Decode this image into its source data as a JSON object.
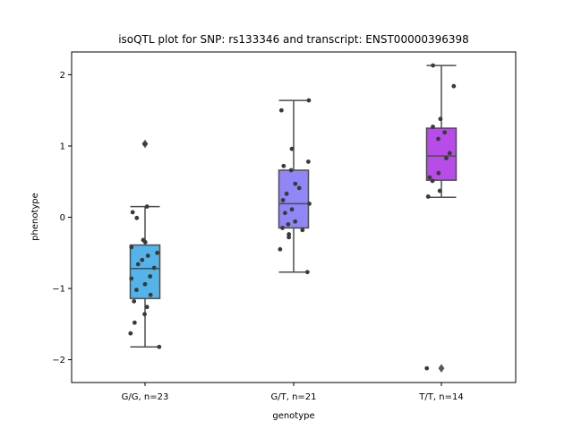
{
  "chart_data": {
    "type": "box",
    "title": "isoQTL plot for SNP: rs133346 and transcript: ENST00000396398",
    "xlabel": "genotype",
    "ylabel": "phenotype",
    "ylim": [
      -2.32,
      2.32
    ],
    "yticks": [
      -2,
      -1,
      0,
      1,
      2
    ],
    "yticklabels": [
      "−2",
      "−1",
      "0",
      "1",
      "2"
    ],
    "categories": [
      "G/G, n=23",
      "G/T, n=21",
      "T/T, n=14"
    ],
    "colors": [
      "#54b4ea",
      "#9186f5",
      "#b74ce8"
    ],
    "point_color": "#3a3a3a",
    "box_edge_color": "#4d4d4d",
    "boxes": [
      {
        "category": "G/G, n=23",
        "whisker_low": -1.82,
        "q1": -1.14,
        "median": -0.72,
        "q3": -0.39,
        "whisker_high": 0.15,
        "fliers": [
          1.03
        ]
      },
      {
        "category": "G/T, n=21",
        "whisker_low": -0.77,
        "q1": -0.15,
        "median": 0.19,
        "q3": 0.66,
        "whisker_high": 1.64,
        "fliers": []
      },
      {
        "category": "T/T, n=14",
        "whisker_low": 0.28,
        "q1": 0.52,
        "median": 0.86,
        "q3": 1.25,
        "whisker_high": 2.13,
        "fliers": [
          -2.12
        ]
      }
    ],
    "points": [
      [
        1.03,
        0.15,
        0.07,
        -0.01,
        -0.32,
        -0.35,
        -0.42,
        -0.5,
        -0.54,
        -0.6,
        -0.66,
        -0.71,
        -0.83,
        -0.86,
        -0.94,
        -1.02,
        -1.09,
        -1.18,
        -1.26,
        -1.36,
        -1.48,
        -1.63,
        -1.82
      ],
      [
        1.64,
        1.5,
        0.96,
        0.78,
        0.72,
        0.66,
        0.47,
        0.41,
        0.33,
        0.24,
        0.19,
        0.11,
        0.06,
        -0.06,
        -0.1,
        -0.15,
        -0.18,
        -0.24,
        -0.28,
        -0.45,
        -0.77
      ],
      [
        2.13,
        1.84,
        1.38,
        1.27,
        1.19,
        1.1,
        0.9,
        0.83,
        0.56,
        0.51,
        0.37,
        0.29,
        -2.12,
        0.62
      ]
    ]
  }
}
